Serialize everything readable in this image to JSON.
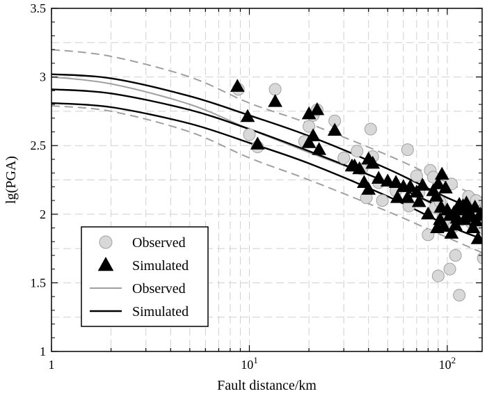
{
  "chart_data": {
    "type": "scatter",
    "xscale": "log",
    "xlim": [
      1,
      150
    ],
    "ylim": [
      1,
      3.5
    ],
    "xlabel": "Fault distance/km",
    "ylabel": "lg(PGA)",
    "xticks": [
      {
        "value": 1,
        "label": "1",
        "sup": ""
      },
      {
        "value": 10,
        "label": "10",
        "sup": "1"
      },
      {
        "value": 100,
        "label": "10",
        "sup": "2"
      }
    ],
    "yticks": [
      {
        "value": 1,
        "label": "1"
      },
      {
        "value": 1.5,
        "label": "1.5"
      },
      {
        "value": 2,
        "label": "2"
      },
      {
        "value": 2.5,
        "label": "2.5"
      },
      {
        "value": 3,
        "label": "3"
      },
      {
        "value": 3.5,
        "label": "3.5"
      }
    ],
    "grid": true,
    "legend": {
      "position": "bottom-left",
      "entries": [
        {
          "label": "Observed",
          "kind": "marker",
          "shape": "circle",
          "color": "#d8d8d8",
          "edge": "#a0a0a0"
        },
        {
          "label": "Simulated",
          "kind": "marker",
          "shape": "triangle",
          "color": "#000000",
          "edge": "#000000"
        },
        {
          "label": "Observed",
          "kind": "line",
          "color": "#a0a0a0"
        },
        {
          "label": "Simulated",
          "kind": "line",
          "color": "#000000"
        }
      ]
    },
    "series": [
      {
        "kind": "scatter",
        "shape": "circle",
        "color": "#d8d8d8",
        "edge": "#a0a0a0",
        "points": [
          [
            8.8,
            2.91
          ],
          [
            10,
            2.58
          ],
          [
            11,
            2.49
          ],
          [
            13.5,
            2.91
          ],
          [
            19,
            2.53
          ],
          [
            20,
            2.64
          ],
          [
            21,
            2.72
          ],
          [
            22,
            2.76
          ],
          [
            27,
            2.68
          ],
          [
            30,
            2.41
          ],
          [
            35,
            2.46
          ],
          [
            37,
            2.33
          ],
          [
            39,
            2.12
          ],
          [
            41,
            2.62
          ],
          [
            42,
            2.42
          ],
          [
            45,
            2.23
          ],
          [
            47,
            2.1
          ],
          [
            55,
            2.17
          ],
          [
            63,
            2.47
          ],
          [
            64,
            2.06
          ],
          [
            70,
            2.28
          ],
          [
            72,
            2.16
          ],
          [
            80,
            1.85
          ],
          [
            82,
            2.32
          ],
          [
            85,
            2.27
          ],
          [
            87,
            2.05
          ],
          [
            90,
            1.55
          ],
          [
            92,
            2.09
          ],
          [
            95,
            1.98
          ],
          [
            100,
            1.95
          ],
          [
            103,
            1.6
          ],
          [
            105,
            2.22
          ],
          [
            108,
            1.91
          ],
          [
            110,
            1.7
          ],
          [
            115,
            1.41
          ],
          [
            118,
            1.96
          ],
          [
            122,
            2.05
          ],
          [
            128,
            2.13
          ],
          [
            132,
            1.94
          ],
          [
            140,
            2.1
          ],
          [
            145,
            2.02
          ],
          [
            148,
            1.9
          ],
          [
            152,
            1.68
          ]
        ]
      },
      {
        "kind": "scatter",
        "shape": "triangle",
        "color": "#000000",
        "edge": "#000000",
        "points": [
          [
            8.7,
            2.93
          ],
          [
            9.8,
            2.71
          ],
          [
            11,
            2.51
          ],
          [
            13.5,
            2.82
          ],
          [
            20,
            2.52
          ],
          [
            20,
            2.73
          ],
          [
            21,
            2.57
          ],
          [
            22,
            2.76
          ],
          [
            22.5,
            2.47
          ],
          [
            27,
            2.61
          ],
          [
            33,
            2.35
          ],
          [
            34,
            2.35
          ],
          [
            36,
            2.33
          ],
          [
            38,
            2.23
          ],
          [
            40,
            2.4
          ],
          [
            40,
            2.18
          ],
          [
            42,
            2.37
          ],
          [
            45,
            2.26
          ],
          [
            50,
            2.24
          ],
          [
            55,
            2.23
          ],
          [
            56,
            2.12
          ],
          [
            60,
            2.2
          ],
          [
            63,
            2.12
          ],
          [
            65,
            2.2
          ],
          [
            70,
            2.16
          ],
          [
            72,
            2.09
          ],
          [
            75,
            2.21
          ],
          [
            80,
            2.0
          ],
          [
            85,
            2.17
          ],
          [
            88,
            2.13
          ],
          [
            89,
            1.9
          ],
          [
            90,
            2.22
          ],
          [
            92,
            1.96
          ],
          [
            93,
            2.05
          ],
          [
            94,
            2.29
          ],
          [
            96,
            1.91
          ],
          [
            98,
            2.19
          ],
          [
            100,
            2.03
          ],
          [
            103,
            1.99
          ],
          [
            105,
            1.86
          ],
          [
            108,
            2.01
          ],
          [
            110,
            1.92
          ],
          [
            112,
            1.97
          ],
          [
            115,
            2.07
          ],
          [
            118,
            2.03
          ],
          [
            120,
            2.06
          ],
          [
            122,
            1.96
          ],
          [
            125,
            2.08
          ],
          [
            128,
            1.98
          ],
          [
            130,
            2.01
          ],
          [
            135,
            1.9
          ],
          [
            138,
            2.05
          ],
          [
            140,
            1.95
          ],
          [
            143,
            1.82
          ],
          [
            147,
            2.0
          ],
          [
            150,
            1.99
          ]
        ]
      },
      {
        "kind": "line",
        "style": "solid",
        "color": "#a0a0a0",
        "points": [
          [
            1,
            3.0
          ],
          [
            2,
            2.95
          ],
          [
            5,
            2.8
          ],
          [
            10,
            2.62
          ],
          [
            20,
            2.45
          ],
          [
            50,
            2.23
          ],
          [
            100,
            2.02
          ],
          [
            150,
            1.91
          ]
        ]
      },
      {
        "kind": "line",
        "style": "dashed",
        "color": "#a0a0a0",
        "points": [
          [
            1,
            3.2
          ],
          [
            2,
            3.15
          ],
          [
            5,
            3.0
          ],
          [
            10,
            2.81
          ],
          [
            20,
            2.66
          ],
          [
            50,
            2.43
          ],
          [
            100,
            2.23
          ],
          [
            150,
            2.12
          ]
        ]
      },
      {
        "kind": "line",
        "style": "dashed",
        "color": "#a0a0a0",
        "points": [
          [
            1,
            2.79
          ],
          [
            2,
            2.75
          ],
          [
            5,
            2.6
          ],
          [
            10,
            2.41
          ],
          [
            20,
            2.25
          ],
          [
            50,
            2.02
          ],
          [
            100,
            1.83
          ],
          [
            150,
            1.72
          ]
        ]
      },
      {
        "kind": "line",
        "style": "solid",
        "color": "#000000",
        "points": [
          [
            1,
            2.91
          ],
          [
            2,
            2.88
          ],
          [
            5,
            2.76
          ],
          [
            10,
            2.62
          ],
          [
            20,
            2.46
          ],
          [
            50,
            2.23
          ],
          [
            100,
            2.03
          ],
          [
            150,
            1.92
          ]
        ]
      },
      {
        "kind": "line",
        "style": "solid",
        "color": "#000000",
        "points": [
          [
            1,
            3.02
          ],
          [
            2,
            2.99
          ],
          [
            5,
            2.86
          ],
          [
            10,
            2.72
          ],
          [
            20,
            2.57
          ],
          [
            50,
            2.33
          ],
          [
            100,
            2.12
          ],
          [
            150,
            2.02
          ]
        ]
      },
      {
        "kind": "line",
        "style": "solid",
        "color": "#000000",
        "points": [
          [
            1,
            2.81
          ],
          [
            2,
            2.78
          ],
          [
            5,
            2.66
          ],
          [
            10,
            2.52
          ],
          [
            20,
            2.37
          ],
          [
            50,
            2.13
          ],
          [
            100,
            1.92
          ],
          [
            150,
            1.82
          ]
        ]
      }
    ]
  }
}
